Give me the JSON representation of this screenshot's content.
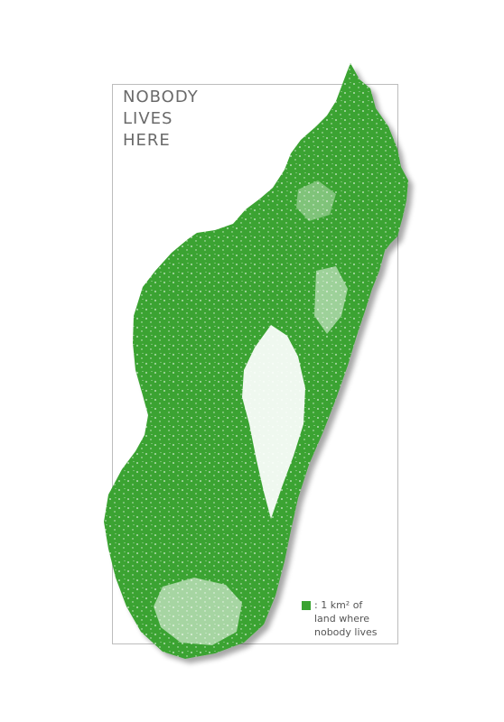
{
  "title": {
    "lines": [
      "NOBODY",
      "LIVES",
      "HERE"
    ]
  },
  "legend": {
    "lines": [
      ": 1 km² of",
      "land where",
      "nobody lives"
    ],
    "swatch_color": "#3aa331"
  },
  "colors": {
    "land": "#3aa331",
    "populated": "#ffffff",
    "frame": "#bdbdbd",
    "text": "#6a6a6a"
  }
}
